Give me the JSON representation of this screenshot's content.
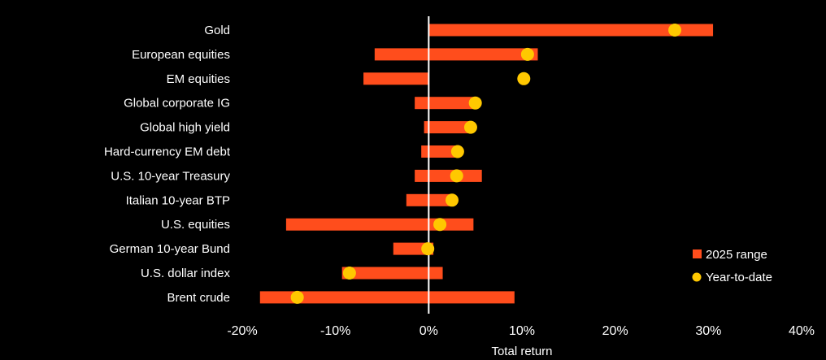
{
  "chart_data": {
    "type": "bar",
    "orientation": "horizontal",
    "categories": [
      "Gold",
      "European equities",
      "EM equities",
      "Global corporate IG",
      "Global high yield",
      "Hard-currency EM debt",
      "U.S. 10-year Treasury",
      "Italian 10-year BTP",
      "U.S. equities",
      "German 10-year Bund",
      "U.S. dollar index",
      "Brent crude"
    ],
    "series": [
      {
        "name": "2025 range",
        "type": "range",
        "color": "#ff4d1c",
        "low": [
          0,
          -5.8,
          -7.0,
          -1.5,
          -0.5,
          -0.8,
          -1.5,
          -2.4,
          -15.3,
          -3.8,
          -9.3,
          -18.1
        ],
        "high": [
          30.5,
          11.7,
          0,
          5.0,
          4.5,
          3.0,
          5.7,
          2.5,
          4.8,
          0.5,
          1.5,
          9.2
        ]
      },
      {
        "name": "Year-to-date",
        "type": "point",
        "color": "#ffc800",
        "values": [
          26.4,
          10.6,
          10.2,
          5.0,
          4.5,
          3.1,
          3.0,
          2.5,
          1.2,
          -0.1,
          -8.5,
          -14.1
        ]
      }
    ],
    "xlim": [
      -20,
      40
    ],
    "xticks": [
      -20,
      -10,
      0,
      10,
      20,
      30,
      40
    ],
    "tick_labels": [
      "-20%",
      "-10%",
      "0%",
      "10%",
      "20%",
      "30%",
      "40%"
    ],
    "xlabel": "Total return",
    "legend": {
      "position": "bottom-right",
      "items": [
        "2025 range",
        "Year-to-date"
      ]
    },
    "grid": false,
    "background": "#000000",
    "zero_line_color": "#ffffff"
  }
}
